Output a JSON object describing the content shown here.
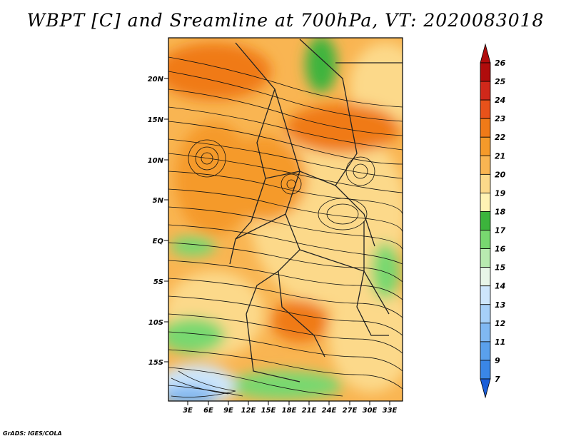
{
  "title": "WBPT [C] and Sreamline at 700hPa, VT: 2020083018",
  "credit": "GrADS: IGES/COLA",
  "lat_labels": [
    "20N",
    "15N",
    "10N",
    "5N",
    "EQ",
    "5S",
    "10S",
    "15S"
  ],
  "lon_labels": [
    "3E",
    "6E",
    "9E",
    "12E",
    "15E",
    "18E",
    "21E",
    "24E",
    "27E",
    "30E",
    "33E"
  ],
  "colorbar": {
    "labels": [
      "7",
      "9",
      "11",
      "12",
      "13",
      "14",
      "15",
      "16",
      "17",
      "18",
      "19",
      "20",
      "21",
      "22",
      "23",
      "24",
      "25",
      "26"
    ],
    "colors": [
      "#1e6ee0",
      "#3a86e6",
      "#5aa0ec",
      "#80b8f2",
      "#a6d0f8",
      "#cde6fb",
      "#e8f6e8",
      "#b8eab0",
      "#78d870",
      "#3cb43c",
      "#fff3b4",
      "#fcd98a",
      "#f9b552",
      "#f59a2a",
      "#f07a18",
      "#e8521a",
      "#d0281a",
      "#b00c0c"
    ],
    "arrow_bottom_color": "#1a5ed8",
    "arrow_top_color": "#b00c0c"
  }
}
